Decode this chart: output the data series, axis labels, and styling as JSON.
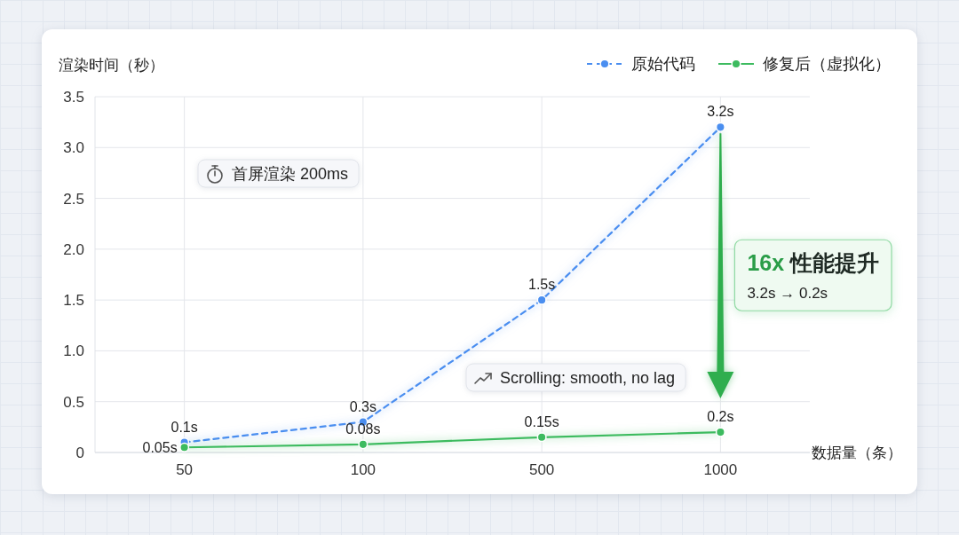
{
  "chart_data": {
    "type": "line",
    "ylabel": "渲染时间（秒）",
    "xlabel": "数据量（条）",
    "categories": [
      "50",
      "100",
      "500",
      "1000"
    ],
    "series": [
      {
        "name": "原始代码",
        "color": "#4a8ef0",
        "line_style": "dashed",
        "values": [
          0.1,
          0.3,
          1.5,
          3.2
        ],
        "value_labels": [
          "0.1s",
          "0.3s",
          "1.5s",
          "3.2s"
        ]
      },
      {
        "name": "修复后（虚拟化）",
        "color": "#3dbb5f",
        "line_style": "solid",
        "values": [
          0.05,
          0.08,
          0.15,
          0.2
        ],
        "value_labels": [
          "0.05s",
          "0.08s",
          "0.15s",
          "0.2s"
        ]
      }
    ],
    "ylim": [
      0,
      3.5
    ],
    "yticks": [
      0,
      0.5,
      {
        "value": 1,
        "label": "1.0"
      },
      1.5,
      {
        "value": 2,
        "label": "2.0"
      },
      2.5,
      {
        "value": 3,
        "label": "3.0"
      },
      3.5
    ],
    "grid": true,
    "legend": "top right",
    "marker": "circle",
    "annotations": [
      "首屏渲染 200ms",
      "Scrolling: smooth, no lag",
      "**16x** 性能提升",
      "3.2s → 0.2s"
    ]
  }
}
